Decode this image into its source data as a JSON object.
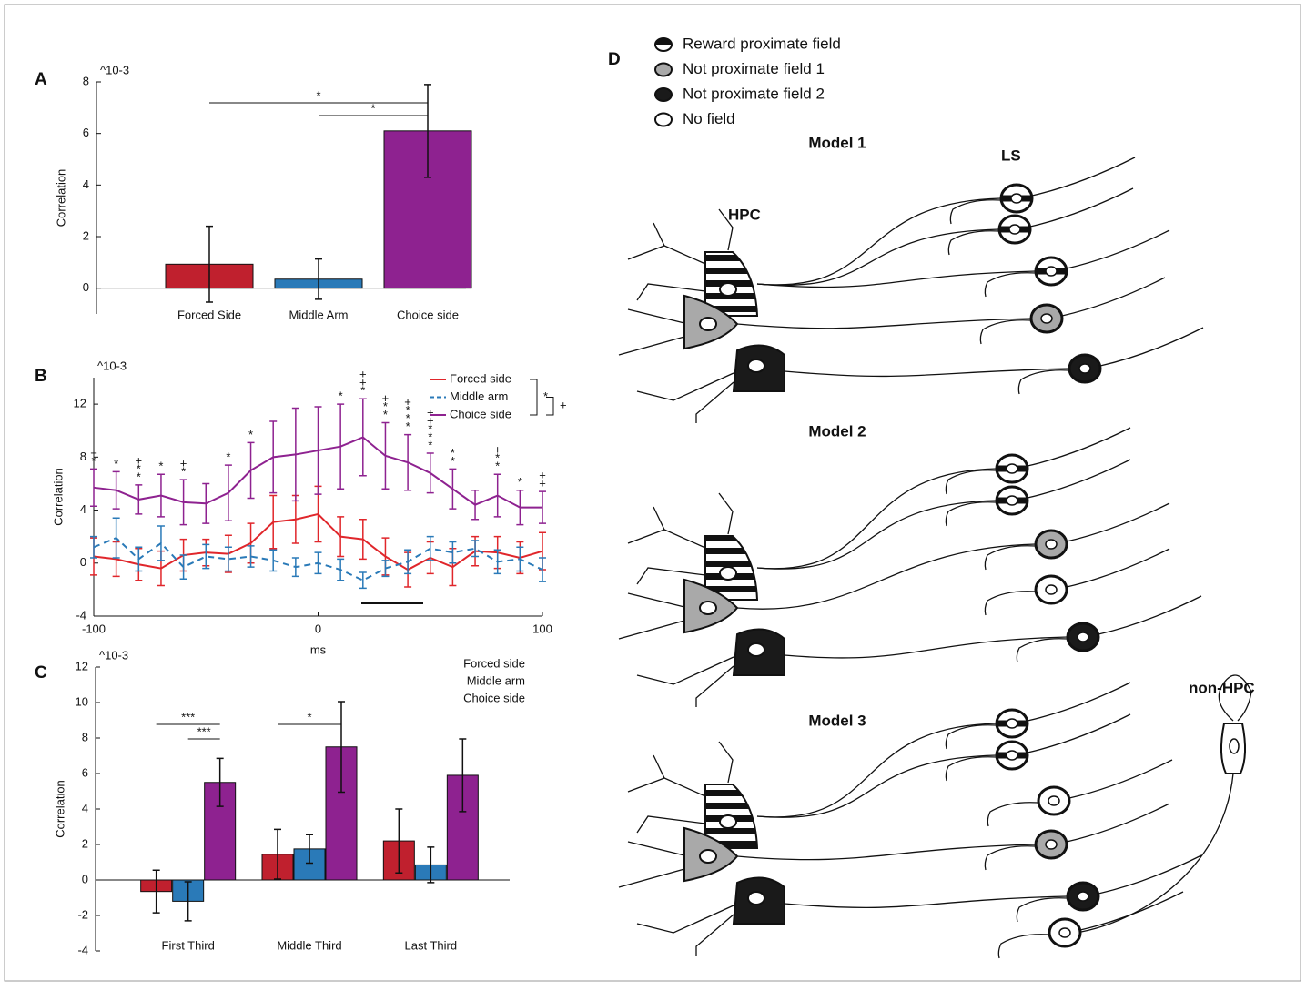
{
  "chart_data": [
    {
      "type": "bar",
      "panel_label": "A",
      "y_multiplier": "^10-3",
      "ylabel": "Correlation",
      "categories": [
        "Forced Side",
        "Middle Arm",
        "Choice side"
      ],
      "values": [
        0.93,
        0.35,
        6.1
      ],
      "errors": [
        1.47,
        0.78,
        1.8
      ],
      "colors": [
        "#c0202e",
        "#2a7ab8",
        "#8e2290"
      ],
      "ylim": [
        -1,
        8
      ],
      "yticks": [
        0,
        2,
        4,
        6,
        8
      ],
      "significance": [
        {
          "text": "*",
          "between": [
            0,
            2
          ]
        },
        {
          "text": "*",
          "between": [
            1,
            2
          ]
        }
      ]
    },
    {
      "type": "line",
      "panel_label": "B",
      "y_multiplier": "^10-3",
      "ylabel": "Correlation",
      "xlabel": "ms",
      "x": [
        -100,
        -90,
        -80,
        -70,
        -60,
        -50,
        -40,
        -30,
        -20,
        -10,
        0,
        10,
        20,
        30,
        40,
        50,
        60,
        70,
        80,
        90,
        100
      ],
      "xlim": [
        -100,
        100
      ],
      "xticks": [
        -100,
        0,
        100
      ],
      "ylim": [
        -4,
        14
      ],
      "yticks": [
        -4,
        0,
        4,
        8,
        12
      ],
      "series": [
        {
          "name": "Forced side",
          "color": "#e0262b",
          "dashed": false,
          "values": [
            0.5,
            0.3,
            -0.1,
            -0.4,
            0.6,
            0.8,
            0.7,
            1.5,
            3.1,
            3.3,
            3.7,
            2.0,
            1.8,
            0.5,
            -0.5,
            0.4,
            -0.3,
            0.9,
            0.8,
            0.4,
            0.9
          ],
          "errors": [
            1.4,
            1.3,
            1.2,
            1.3,
            1.2,
            1.0,
            1.4,
            1.5,
            2.0,
            1.8,
            2.1,
            1.5,
            1.5,
            1.4,
            1.3,
            1.2,
            1.4,
            1.1,
            1.2,
            1.2,
            1.4
          ]
        },
        {
          "name": "Middle arm",
          "color": "#2a7ab8",
          "dashed": true,
          "values": [
            1.2,
            1.9,
            0.3,
            1.5,
            -0.3,
            0.5,
            0.3,
            0.5,
            0.2,
            -0.3,
            0.0,
            -0.5,
            -1.3,
            -0.4,
            0.1,
            1.1,
            0.8,
            1.1,
            0.1,
            0.3,
            -0.5
          ],
          "errors": [
            0.8,
            1.5,
            0.9,
            1.3,
            0.9,
            0.9,
            0.9,
            0.8,
            0.8,
            0.7,
            0.8,
            0.8,
            0.6,
            0.6,
            0.9,
            0.9,
            0.8,
            0.6,
            0.9,
            0.9,
            0.9
          ]
        },
        {
          "name": "Choice side",
          "color": "#8e2290",
          "dashed": false,
          "values": [
            5.7,
            5.5,
            4.8,
            5.1,
            4.6,
            4.5,
            5.3,
            7.0,
            8.0,
            8.2,
            8.5,
            8.8,
            9.5,
            8.1,
            7.6,
            6.8,
            5.6,
            4.4,
            5.1,
            4.2,
            4.2
          ],
          "errors": [
            1.4,
            1.4,
            1.1,
            1.6,
            1.7,
            1.5,
            2.1,
            2.1,
            2.7,
            3.5,
            3.3,
            3.2,
            2.9,
            2.5,
            2.1,
            1.5,
            1.5,
            1.1,
            1.6,
            1.3,
            1.2
          ],
          "point_annotations": [
            [
              "+",
              "*"
            ],
            [
              "*"
            ],
            [
              "+",
              "*",
              "*"
            ],
            [
              "*"
            ],
            [
              "+",
              "*"
            ],
            null,
            [
              "*"
            ],
            [
              "*"
            ],
            null,
            null,
            null,
            [
              "*"
            ],
            [
              "+",
              "+",
              "*"
            ],
            [
              "+",
              "*",
              "*"
            ],
            [
              "+",
              "*",
              "*",
              "*"
            ],
            [
              "+",
              "+",
              "*",
              "*",
              "*"
            ],
            [
              "*",
              "*"
            ],
            null,
            [
              "+",
              "*",
              "*"
            ],
            [
              "*"
            ],
            [
              "+",
              "+"
            ]
          ]
        }
      ],
      "legend_significance": [
        {
          "text": "*",
          "between": [
            0,
            2
          ]
        },
        {
          "text": "+",
          "between": [
            1,
            2
          ]
        }
      ]
    },
    {
      "type": "bar",
      "panel_label": "C",
      "y_multiplier": "^10-3",
      "ylabel": "Correlation",
      "categories": [
        "First Third",
        "Middle Third",
        "Last Third"
      ],
      "ylim": [
        -4,
        12
      ],
      "yticks": [
        -4,
        -2,
        0,
        2,
        4,
        6,
        8,
        10,
        12
      ],
      "series": [
        {
          "name": "Forced side",
          "color": "#c0202e",
          "values": [
            -0.65,
            1.45,
            2.2
          ],
          "errors": [
            1.2,
            1.4,
            1.8
          ]
        },
        {
          "name": "Middle arm",
          "color": "#2a7ab8",
          "values": [
            -1.2,
            1.75,
            0.85
          ],
          "errors": [
            1.1,
            0.8,
            1.0
          ]
        },
        {
          "name": "Choice side",
          "color": "#8e2290",
          "values": [
            5.5,
            7.5,
            5.9
          ],
          "errors": [
            1.35,
            2.55,
            2.05
          ]
        }
      ],
      "significance": [
        {
          "text": "***",
          "category": 0,
          "between": [
            0,
            2
          ]
        },
        {
          "text": "***",
          "category": 0,
          "between": [
            1,
            2
          ]
        },
        {
          "text": "*",
          "category": 1,
          "between": [
            0,
            2
          ]
        }
      ]
    }
  ],
  "diagram": {
    "panel_label": "D",
    "legend": [
      "Reward proximate field",
      "Not proximate field 1",
      "Not proximate field 2",
      "No field"
    ],
    "models": [
      "Model 1",
      "Model 2",
      "Model 3"
    ],
    "regions": {
      "hpc": "HPC",
      "ls": "LS",
      "non_hpc": "non-HPC"
    }
  }
}
